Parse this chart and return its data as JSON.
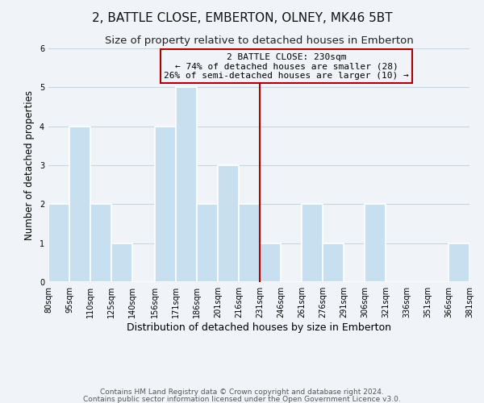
{
  "title": "2, BATTLE CLOSE, EMBERTON, OLNEY, MK46 5BT",
  "subtitle": "Size of property relative to detached houses in Emberton",
  "xlabel": "Distribution of detached houses by size in Emberton",
  "ylabel": "Number of detached properties",
  "bin_edges": [
    80,
    95,
    110,
    125,
    140,
    156,
    171,
    186,
    201,
    216,
    231,
    246,
    261,
    276,
    291,
    306,
    321,
    336,
    351,
    366,
    381
  ],
  "bar_heights": [
    2,
    4,
    2,
    1,
    0,
    4,
    5,
    2,
    3,
    2,
    1,
    0,
    2,
    1,
    0,
    2,
    0,
    0,
    0,
    1
  ],
  "bar_color": "#c8dff0",
  "bar_edgecolor": "#ffffff",
  "bar_linewidth": 1.2,
  "vline_x": 231,
  "vline_color": "#aa0000",
  "ylim": [
    0,
    6
  ],
  "yticks": [
    0,
    1,
    2,
    3,
    4,
    5,
    6
  ],
  "annotation_title": "2 BATTLE CLOSE: 230sqm",
  "annotation_line1": "← 74% of detached houses are smaller (28)",
  "annotation_line2": "26% of semi-detached houses are larger (10) →",
  "annotation_box_edgecolor": "#aa0000",
  "footnote1": "Contains HM Land Registry data © Crown copyright and database right 2024.",
  "footnote2": "Contains public sector information licensed under the Open Government Licence v3.0.",
  "background_color": "#f0f4f8",
  "grid_color": "#c8d4e0",
  "title_fontsize": 11,
  "subtitle_fontsize": 9.5,
  "xlabel_fontsize": 9,
  "ylabel_fontsize": 8.5,
  "tick_fontsize": 7,
  "annotation_fontsize": 8,
  "footnote_fontsize": 6.5
}
